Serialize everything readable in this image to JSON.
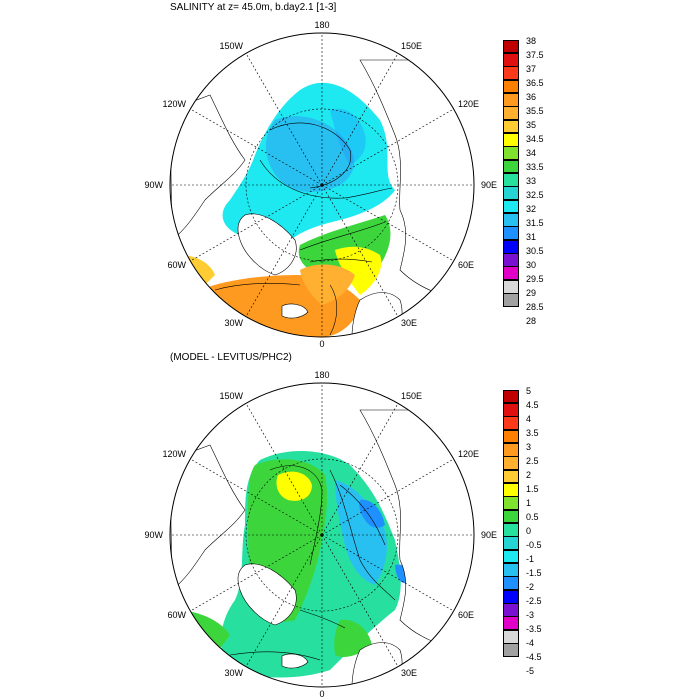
{
  "panels": [
    {
      "title": "SALINITY at z=  45.0m, b.day2.1 [1-3]",
      "colorbar": {
        "labels": [
          "38",
          "37.5",
          "37",
          "36.5",
          "36",
          "35.5",
          "35",
          "34.5",
          "34",
          "33.5",
          "33",
          "32.5",
          "32",
          "31.5",
          "31",
          "30.5",
          "30",
          "29.5",
          "29",
          "28.5",
          "28"
        ],
        "colors": [
          "#c00000",
          "#e01010",
          "#ff3a1a",
          "#ff7f00",
          "#ff9a20",
          "#ffb030",
          "#ffcc33",
          "#ffff00",
          "#7fe22c",
          "#3cd63c",
          "#27e0a0",
          "#26d4d4",
          "#1ee8f0",
          "#28c0f0",
          "#1e90ff",
          "#0000ff",
          "#7a10d0",
          "#e000c8",
          "#d8d8d8",
          "#a0a0a0"
        ]
      },
      "meridian_labels": [
        "180",
        "150E",
        "120E",
        "90E",
        "60E",
        "30E",
        "0",
        "30W",
        "60W",
        "90W",
        "120W",
        "150W"
      ]
    },
    {
      "title": "(MODEL - LEVITUS/PHC2)",
      "colorbar": {
        "labels": [
          "5",
          "4.5",
          "4",
          "3.5",
          "3",
          "2.5",
          "2",
          "1.5",
          "1",
          "0.5",
          "0",
          "-0.5",
          "-1",
          "-1.5",
          "-2",
          "-2.5",
          "-3",
          "-3.5",
          "-4",
          "-4.5",
          "-5"
        ],
        "colors": [
          "#c00000",
          "#e01010",
          "#ff3a1a",
          "#ff7f00",
          "#ff9a20",
          "#ffb030",
          "#ffcc33",
          "#ffff00",
          "#7fe22c",
          "#3cd63c",
          "#27e0a0",
          "#26d4d4",
          "#1ee8f0",
          "#28c0f0",
          "#1e90ff",
          "#0000ff",
          "#7a10d0",
          "#e000c8",
          "#d8d8d8",
          "#a0a0a0"
        ]
      },
      "meridian_labels": [
        "180",
        "150E",
        "120E",
        "90E",
        "60E",
        "30E",
        "0",
        "30W",
        "60W",
        "90W",
        "120W",
        "150W"
      ]
    }
  ]
}
